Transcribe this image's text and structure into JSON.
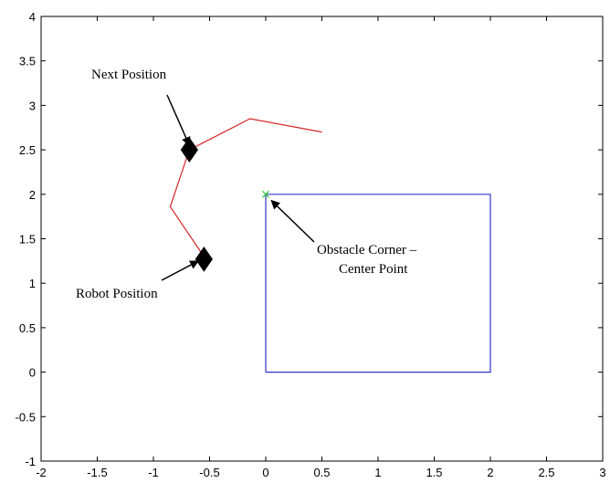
{
  "chart_data": {
    "type": "line",
    "xlim": [
      -2,
      3
    ],
    "ylim": [
      -1,
      4
    ],
    "xticks": [
      -2,
      -1.5,
      -1,
      -0.5,
      0,
      0.5,
      1,
      1.5,
      2,
      2.5,
      3
    ],
    "yticks": [
      -1,
      -0.5,
      0,
      0.5,
      1,
      1.5,
      2,
      2.5,
      3,
      3.5,
      4
    ],
    "xtick_labels": [
      "-2",
      "-1.5",
      "-1",
      "-0.5",
      "0",
      "0.5",
      "1",
      "1.5",
      "2",
      "2.5",
      "3"
    ],
    "ytick_labels": [
      "-1",
      "-0.5",
      "0",
      "0.5",
      "1",
      "1.5",
      "2",
      "2.5",
      "3",
      "3.5",
      "4"
    ],
    "grid": false,
    "series": [
      {
        "color": "#d62728",
        "style": "line",
        "x": [
          -0.55,
          -0.85,
          -0.68,
          -0.14,
          0.5
        ],
        "y": [
          1.3,
          1.86,
          2.5,
          2.85,
          2.7
        ]
      },
      {
        "color": "#3333cc",
        "style": "line",
        "x": [
          0,
          2,
          2,
          0,
          0
        ],
        "y": [
          0,
          0,
          2,
          2,
          0
        ]
      }
    ],
    "markers": [
      {
        "color": "#000000",
        "shape": "diamond",
        "x": -0.68,
        "y": 2.5
      },
      {
        "color": "#000000",
        "shape": "diamond",
        "x": -0.55,
        "y": 1.27
      },
      {
        "color": "#33cc33",
        "shape": "x",
        "x": 0,
        "y": 2
      }
    ],
    "annotations": [
      {
        "text": "Next Position",
        "arrow_to": [
          -0.68,
          2.55
        ]
      },
      {
        "text": "Robot Position",
        "arrow_to": [
          -0.6,
          1.25
        ]
      },
      {
        "lines": [
          "Obstacle Corner –",
          "Center Point"
        ],
        "arrow_to": [
          0.05,
          1.93
        ]
      }
    ]
  }
}
